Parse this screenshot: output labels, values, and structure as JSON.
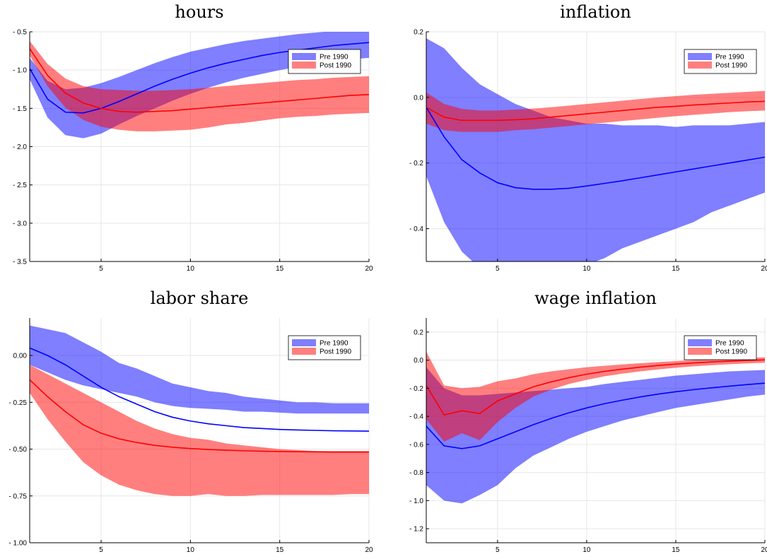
{
  "colors": {
    "pre_band": "#0000ff",
    "pre_line": "#0000ff",
    "post_band": "#ff0000",
    "post_line": "#ff0000",
    "band_opacity": 0.5
  },
  "chart_data": [
    {
      "type": "area",
      "title": "hours",
      "xlabel": "",
      "ylabel": "",
      "xlim": [
        1,
        20
      ],
      "ylim": [
        -3.5,
        -0.5
      ],
      "xticks": [
        5,
        10,
        15,
        20
      ],
      "yticks": [
        -3.5,
        -3.0,
        -2.5,
        -2.0,
        -1.5,
        -1.0,
        -0.5
      ],
      "ytick_labels": [
        "- 3.5",
        "- 3.0",
        "- 2.5",
        "- 2.0",
        "- 1.5",
        "- 1.0",
        "- 0.5"
      ],
      "grid": true,
      "legend_position": "top-right",
      "x": [
        1,
        2,
        3,
        4,
        5,
        6,
        7,
        8,
        9,
        10,
        11,
        12,
        13,
        14,
        15,
        16,
        17,
        18,
        19,
        20
      ],
      "series": [
        {
          "name": "Pre 1990",
          "values": [
            -0.98,
            -1.38,
            -1.55,
            -1.56,
            -1.5,
            -1.41,
            -1.31,
            -1.21,
            -1.12,
            -1.04,
            -0.97,
            -0.91,
            -0.86,
            -0.81,
            -0.77,
            -0.74,
            -0.71,
            -0.68,
            -0.66,
            -0.64
          ],
          "lower": [
            -1.12,
            -1.62,
            -1.85,
            -1.89,
            -1.83,
            -1.71,
            -1.6,
            -1.5,
            -1.4,
            -1.31,
            -1.23,
            -1.16,
            -1.1,
            -1.05,
            -1.0,
            -0.96,
            -0.92,
            -0.89,
            -0.86,
            -0.84
          ],
          "upper": [
            -0.84,
            -1.14,
            -1.25,
            -1.23,
            -1.17,
            -1.09,
            -1.0,
            -0.91,
            -0.83,
            -0.76,
            -0.71,
            -0.66,
            -0.62,
            -0.59,
            -0.56,
            -0.53,
            -0.51,
            -0.49,
            -0.47,
            -0.45
          ]
        },
        {
          "name": "Post 1990",
          "values": [
            -0.72,
            -1.07,
            -1.3,
            -1.43,
            -1.5,
            -1.54,
            -1.55,
            -1.54,
            -1.53,
            -1.51,
            -1.49,
            -1.47,
            -1.45,
            -1.43,
            -1.41,
            -1.39,
            -1.37,
            -1.35,
            -1.33,
            -1.32
          ],
          "lower": [
            -0.81,
            -1.21,
            -1.49,
            -1.65,
            -1.74,
            -1.78,
            -1.8,
            -1.8,
            -1.79,
            -1.78,
            -1.75,
            -1.71,
            -1.69,
            -1.66,
            -1.63,
            -1.61,
            -1.6,
            -1.58,
            -1.57,
            -1.56
          ],
          "upper": [
            -0.62,
            -0.92,
            -1.11,
            -1.21,
            -1.25,
            -1.26,
            -1.27,
            -1.27,
            -1.26,
            -1.25,
            -1.23,
            -1.21,
            -1.19,
            -1.17,
            -1.15,
            -1.13,
            -1.12,
            -1.1,
            -1.09,
            -1.08
          ]
        }
      ]
    },
    {
      "type": "area",
      "title": "inflation",
      "xlabel": "",
      "ylabel": "",
      "xlim": [
        1,
        20
      ],
      "ylim": [
        -0.5,
        0.2
      ],
      "xticks": [
        5,
        10,
        15,
        20
      ],
      "yticks": [
        -0.4,
        -0.2,
        0.0,
        0.2
      ],
      "ytick_labels": [
        "- 0.4",
        "- 0.2",
        "0.0",
        "0.2"
      ],
      "grid": true,
      "legend_position": "top-right",
      "x": [
        1,
        2,
        3,
        4,
        5,
        6,
        7,
        8,
        9,
        10,
        11,
        12,
        13,
        14,
        15,
        16,
        17,
        18,
        19,
        20
      ],
      "series": [
        {
          "name": "Pre 1990",
          "values": [
            -0.03,
            -0.12,
            -0.19,
            -0.23,
            -0.26,
            -0.275,
            -0.28,
            -0.28,
            -0.277,
            -0.27,
            -0.262,
            -0.254,
            -0.245,
            -0.236,
            -0.227,
            -0.218,
            -0.209,
            -0.2,
            -0.191,
            -0.182
          ],
          "lower": [
            -0.24,
            -0.38,
            -0.47,
            -0.52,
            -0.55,
            -0.56,
            -0.56,
            -0.55,
            -0.53,
            -0.51,
            -0.49,
            -0.46,
            -0.44,
            -0.42,
            -0.4,
            -0.38,
            -0.35,
            -0.33,
            -0.31,
            -0.29
          ],
          "upper": [
            0.18,
            0.15,
            0.09,
            0.04,
            0.01,
            -0.02,
            -0.04,
            -0.06,
            -0.07,
            -0.08,
            -0.08,
            -0.085,
            -0.085,
            -0.085,
            -0.09,
            -0.085,
            -0.085,
            -0.085,
            -0.08,
            -0.075
          ]
        },
        {
          "name": "Post 1990",
          "values": [
            -0.03,
            -0.06,
            -0.07,
            -0.07,
            -0.07,
            -0.068,
            -0.065,
            -0.06,
            -0.055,
            -0.05,
            -0.045,
            -0.04,
            -0.035,
            -0.03,
            -0.027,
            -0.023,
            -0.02,
            -0.017,
            -0.014,
            -0.012
          ],
          "lower": [
            -0.08,
            -0.1,
            -0.105,
            -0.105,
            -0.105,
            -0.1,
            -0.097,
            -0.092,
            -0.087,
            -0.082,
            -0.077,
            -0.072,
            -0.067,
            -0.062,
            -0.057,
            -0.053,
            -0.049,
            -0.045,
            -0.042,
            -0.04
          ],
          "upper": [
            0.015,
            -0.02,
            -0.035,
            -0.04,
            -0.04,
            -0.037,
            -0.034,
            -0.03,
            -0.025,
            -0.02,
            -0.015,
            -0.01,
            -0.005,
            0.0,
            0.004,
            0.008,
            0.011,
            0.014,
            0.017,
            0.02
          ]
        }
      ]
    },
    {
      "type": "area",
      "title": "labor share",
      "xlabel": "",
      "ylabel": "",
      "xlim": [
        1,
        20
      ],
      "ylim": [
        -1.0,
        0.2
      ],
      "xticks": [
        5,
        10,
        15,
        20
      ],
      "yticks": [
        -1.0,
        -0.75,
        -0.5,
        -0.25,
        0.0
      ],
      "ytick_labels": [
        "- 1.00",
        "- 0.75",
        "- 0.50",
        "- 0.25",
        "0.00"
      ],
      "grid": true,
      "legend_position": "top-right",
      "x": [
        1,
        2,
        3,
        4,
        5,
        6,
        7,
        8,
        9,
        10,
        11,
        12,
        13,
        14,
        15,
        16,
        17,
        18,
        19,
        20
      ],
      "series": [
        {
          "name": "Pre 1990",
          "values": [
            0.04,
            0.0,
            -0.05,
            -0.11,
            -0.17,
            -0.22,
            -0.26,
            -0.3,
            -0.33,
            -0.35,
            -0.365,
            -0.375,
            -0.385,
            -0.39,
            -0.395,
            -0.398,
            -0.4,
            -0.402,
            -0.403,
            -0.404
          ],
          "lower": [
            -0.05,
            -0.09,
            -0.13,
            -0.16,
            -0.18,
            -0.2,
            -0.22,
            -0.25,
            -0.27,
            -0.28,
            -0.285,
            -0.29,
            -0.3,
            -0.3,
            -0.305,
            -0.31,
            -0.31,
            -0.31,
            -0.31,
            -0.31
          ],
          "upper": [
            0.16,
            0.14,
            0.12,
            0.07,
            0.02,
            -0.04,
            -0.07,
            -0.11,
            -0.15,
            -0.17,
            -0.19,
            -0.2,
            -0.22,
            -0.23,
            -0.24,
            -0.25,
            -0.25,
            -0.255,
            -0.255,
            -0.255
          ]
        },
        {
          "name": "Post 1990",
          "values": [
            -0.13,
            -0.22,
            -0.3,
            -0.37,
            -0.415,
            -0.445,
            -0.465,
            -0.48,
            -0.49,
            -0.497,
            -0.502,
            -0.506,
            -0.509,
            -0.511,
            -0.513,
            -0.514,
            -0.515,
            -0.516,
            -0.516,
            -0.516
          ],
          "lower": [
            -0.2,
            -0.34,
            -0.46,
            -0.57,
            -0.64,
            -0.69,
            -0.72,
            -0.74,
            -0.75,
            -0.75,
            -0.74,
            -0.75,
            -0.75,
            -0.745,
            -0.745,
            -0.745,
            -0.745,
            -0.745,
            -0.74,
            -0.74
          ],
          "upper": [
            -0.05,
            -0.1,
            -0.15,
            -0.2,
            -0.25,
            -0.3,
            -0.35,
            -0.39,
            -0.42,
            -0.44,
            -0.45,
            -0.47,
            -0.48,
            -0.49,
            -0.5,
            -0.505,
            -0.51,
            -0.51,
            -0.51,
            -0.51
          ]
        }
      ]
    },
    {
      "type": "area",
      "title": "wage inflation",
      "xlabel": "",
      "ylabel": "",
      "xlim": [
        1,
        20
      ],
      "ylim": [
        -1.3,
        0.3
      ],
      "xticks": [
        5,
        10,
        15,
        20
      ],
      "yticks": [
        -1.2,
        -1.0,
        -0.8,
        -0.6,
        -0.4,
        -0.2,
        0.0,
        0.2
      ],
      "ytick_labels": [
        "- 1.2",
        "- 1.0",
        "- 0.8",
        "- 0.6",
        "- 0.4",
        "- 0.2",
        "0.0",
        "0.2"
      ],
      "grid": true,
      "legend_position": "top-right",
      "x": [
        1,
        2,
        3,
        4,
        5,
        6,
        7,
        8,
        9,
        10,
        11,
        12,
        13,
        14,
        15,
        16,
        17,
        18,
        19,
        20
      ],
      "series": [
        {
          "name": "Pre 1990",
          "values": [
            -0.47,
            -0.61,
            -0.63,
            -0.61,
            -0.56,
            -0.51,
            -0.46,
            -0.415,
            -0.375,
            -0.34,
            -0.31,
            -0.285,
            -0.262,
            -0.242,
            -0.225,
            -0.21,
            -0.197,
            -0.185,
            -0.174,
            -0.164
          ],
          "lower": [
            -0.89,
            -1.0,
            -1.02,
            -0.96,
            -0.89,
            -0.77,
            -0.68,
            -0.62,
            -0.56,
            -0.51,
            -0.47,
            -0.43,
            -0.4,
            -0.37,
            -0.34,
            -0.32,
            -0.3,
            -0.28,
            -0.26,
            -0.245
          ],
          "upper": [
            -0.05,
            -0.2,
            -0.25,
            -0.25,
            -0.24,
            -0.23,
            -0.22,
            -0.21,
            -0.2,
            -0.19,
            -0.17,
            -0.155,
            -0.14,
            -0.125,
            -0.11,
            -0.1,
            -0.09,
            -0.08,
            -0.075,
            -0.07
          ]
        },
        {
          "name": "Post 1990",
          "values": [
            -0.18,
            -0.39,
            -0.36,
            -0.38,
            -0.29,
            -0.24,
            -0.19,
            -0.155,
            -0.125,
            -0.1,
            -0.08,
            -0.064,
            -0.05,
            -0.038,
            -0.028,
            -0.02,
            -0.013,
            -0.007,
            -0.002,
            0.002
          ],
          "lower": [
            -0.42,
            -0.58,
            -0.52,
            -0.57,
            -0.44,
            -0.34,
            -0.26,
            -0.21,
            -0.17,
            -0.14,
            -0.115,
            -0.096,
            -0.08,
            -0.066,
            -0.054,
            -0.044,
            -0.036,
            -0.029,
            -0.023,
            -0.018
          ],
          "upper": [
            0.06,
            -0.18,
            -0.2,
            -0.19,
            -0.15,
            -0.13,
            -0.1,
            -0.08,
            -0.065,
            -0.05,
            -0.04,
            -0.03,
            -0.022,
            -0.014,
            -0.007,
            0.0,
            0.006,
            0.011,
            0.016,
            0.02
          ]
        }
      ]
    }
  ]
}
